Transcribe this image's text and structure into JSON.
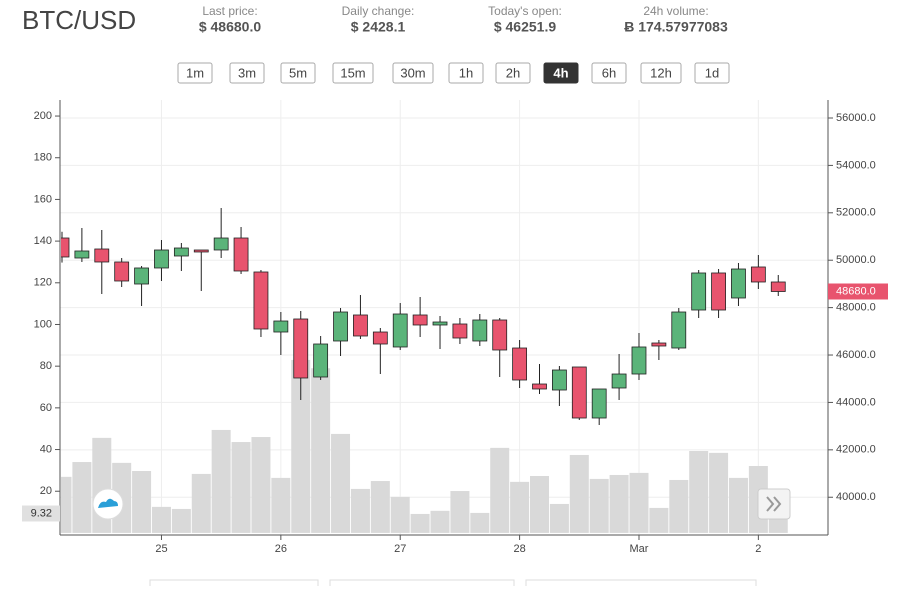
{
  "header": {
    "symbol": "BTC/USD",
    "stats": [
      {
        "label": "Last price:",
        "value": "$ 48680.0"
      },
      {
        "label": "Daily change:",
        "value": "$ 2428.1"
      },
      {
        "label": "Today's open:",
        "value": "$ 46251.9"
      },
      {
        "label": "24h volume:",
        "value": "Ƀ 174.57977083"
      }
    ]
  },
  "intervals": {
    "options": [
      "1m",
      "3m",
      "5m",
      "15m",
      "30m",
      "1h",
      "2h",
      "4h",
      "6h",
      "12h",
      "1d"
    ],
    "active": "4h"
  },
  "chart_data": {
    "type": "candlestick",
    "open": [
      50937,
      50093,
      50473,
      49925,
      48996,
      49672,
      50178,
      50431,
      50431,
      50937,
      49503,
      46971,
      47520,
      45073,
      46592,
      47689,
      46971,
      46339,
      47689,
      47267,
      47309,
      46592,
      47478,
      46296,
      44777,
      44524,
      45495,
      43343,
      44609,
      45199,
      46507,
      46296,
      47899,
      49461,
      48406,
      49714,
      49081
    ],
    "high": [
      51200,
      51359,
      51275,
      50093,
      49756,
      50853,
      50726,
      50431,
      52203,
      51401,
      49587,
      47815,
      47857,
      46803,
      47984,
      48532,
      47140,
      48195,
      48448,
      47646,
      47562,
      47731,
      47562,
      46634,
      45621,
      45537,
      45495,
      44567,
      46043,
      46929,
      46634,
      47984,
      49587,
      49629,
      49883,
      50220,
      49376
    ],
    "low": [
      49900,
      49925,
      48574,
      48870,
      48068,
      49123,
      49545,
      48701,
      50093,
      49418,
      46760,
      46001,
      44102,
      44946,
      45959,
      46676,
      45199,
      46212,
      46760,
      46254,
      46465,
      46381,
      45073,
      44609,
      44356,
      43849,
      43259,
      43048,
      44102,
      44946,
      45790,
      46212,
      47562,
      47562,
      48068,
      48785,
      48490
    ],
    "close": [
      50136,
      50389,
      49925,
      49123,
      49672,
      50431,
      50515,
      50347,
      50937,
      49545,
      47098,
      47435,
      45031,
      46465,
      47815,
      46803,
      46465,
      47731,
      47267,
      47393,
      46718,
      47478,
      46212,
      44946,
      44567,
      45368,
      43343,
      44567,
      45199,
      46339,
      46381,
      47815,
      49461,
      47899,
      49629,
      49081,
      48680
    ],
    "volume": [
      26.9,
      34,
      45.6,
      33.6,
      29.7,
      12.5,
      11.5,
      28.3,
      49.4,
      43.6,
      46,
      26.4,
      83,
      79,
      47.5,
      21.1,
      24.9,
      17.3,
      9.1,
      10.6,
      20.1,
      9.6,
      40.8,
      24.5,
      27.3,
      13.9,
      37.4,
      25.9,
      27.8,
      28.8,
      12,
      25.4,
      39.3,
      38.4,
      26.4,
      32.1,
      9.32
    ],
    "up_color": "#5bb47a",
    "down_color": "#e8546e",
    "volume_color": "#d9d9d9",
    "xlim": [
      -0.1,
      38.5
    ],
    "xticks": [
      {
        "value": 5,
        "label": "25"
      },
      {
        "value": 11,
        "label": "26"
      },
      {
        "value": 17,
        "label": "27"
      },
      {
        "value": 23,
        "label": "28"
      },
      {
        "value": 29,
        "label": "Mar"
      },
      {
        "value": 35,
        "label": "2"
      }
    ],
    "ylim": [
      38407,
      56759
    ],
    "yticks": [
      {
        "value": 40000,
        "label": "40000.0"
      },
      {
        "value": 42000,
        "label": "42000.0"
      },
      {
        "value": 44000,
        "label": "44000.0"
      },
      {
        "value": 46000,
        "label": "46000.0"
      },
      {
        "value": 48000,
        "label": "48000.0"
      },
      {
        "value": 50000,
        "label": "50000.0"
      },
      {
        "value": 52000,
        "label": "52000.0"
      },
      {
        "value": 54000,
        "label": "54000.0"
      },
      {
        "value": 56000,
        "label": "56000.0"
      }
    ],
    "y2lim": [
      -1,
      207.7
    ],
    "y2ticks": [
      20,
      40,
      60,
      80,
      100,
      120,
      140,
      160,
      180,
      200
    ],
    "last_price": {
      "value": 48680,
      "label": "48680.0"
    },
    "grid": true
  }
}
